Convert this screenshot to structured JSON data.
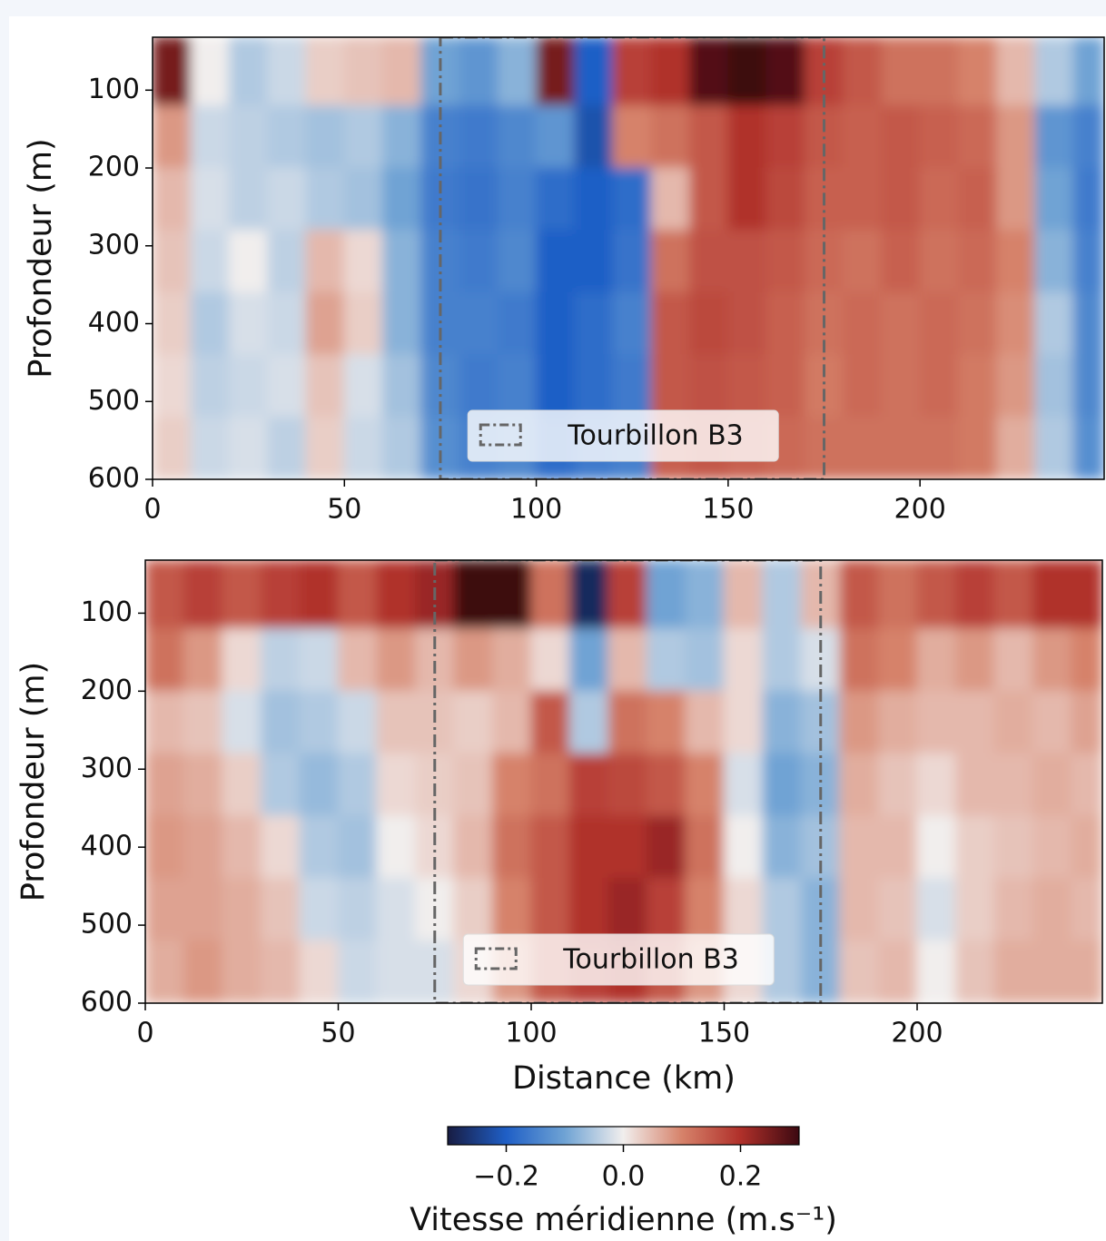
{
  "chart_data": [
    {
      "type": "heatmap",
      "x": [
        5,
        15,
        25,
        35,
        45,
        55,
        65,
        75,
        85,
        95,
        105,
        115,
        125,
        135,
        145,
        155,
        165,
        175,
        185,
        195,
        205,
        215,
        225,
        235,
        245
      ],
      "y": [
        80,
        160,
        240,
        320,
        400,
        480,
        560
      ],
      "values": [
        [
          0.25,
          0.0,
          -0.05,
          -0.03,
          0.03,
          0.04,
          0.05,
          -0.1,
          -0.12,
          -0.08,
          0.25,
          -0.2,
          0.18,
          0.2,
          0.28,
          0.3,
          0.28,
          0.18,
          0.15,
          0.12,
          0.12,
          0.1,
          0.05,
          -0.05,
          -0.1
        ],
        [
          0.08,
          -0.03,
          -0.04,
          -0.05,
          -0.06,
          -0.05,
          -0.08,
          -0.15,
          -0.16,
          -0.14,
          -0.12,
          -0.22,
          0.1,
          0.12,
          0.15,
          0.2,
          0.18,
          0.15,
          0.14,
          0.15,
          0.14,
          0.13,
          0.08,
          -0.12,
          -0.15
        ],
        [
          0.05,
          -0.02,
          -0.04,
          -0.03,
          -0.05,
          -0.06,
          -0.1,
          -0.16,
          -0.17,
          -0.15,
          -0.18,
          -0.2,
          -0.18,
          0.05,
          0.15,
          0.2,
          0.17,
          0.14,
          0.14,
          0.15,
          0.13,
          0.14,
          0.08,
          -0.1,
          -0.16
        ],
        [
          0.04,
          -0.03,
          0.0,
          -0.04,
          0.05,
          0.02,
          -0.08,
          -0.15,
          -0.16,
          -0.14,
          -0.2,
          -0.2,
          -0.17,
          0.12,
          0.16,
          0.16,
          0.15,
          0.13,
          0.12,
          0.14,
          0.12,
          0.13,
          0.1,
          -0.08,
          -0.15
        ],
        [
          0.03,
          -0.05,
          -0.02,
          -0.03,
          0.07,
          0.03,
          -0.08,
          -0.15,
          -0.15,
          -0.16,
          -0.2,
          -0.18,
          -0.15,
          0.15,
          0.17,
          0.16,
          0.14,
          0.12,
          0.13,
          0.12,
          0.13,
          0.12,
          0.09,
          -0.05,
          -0.14
        ],
        [
          0.02,
          -0.04,
          -0.03,
          -0.02,
          0.04,
          -0.02,
          -0.06,
          -0.14,
          -0.16,
          -0.15,
          -0.2,
          -0.18,
          -0.16,
          0.15,
          0.16,
          0.15,
          0.14,
          0.11,
          0.13,
          0.12,
          0.13,
          0.11,
          0.08,
          -0.06,
          -0.14
        ],
        [
          0.03,
          -0.03,
          -0.02,
          -0.04,
          0.03,
          -0.03,
          -0.05,
          -0.13,
          -0.15,
          -0.14,
          -0.18,
          -0.16,
          -0.15,
          0.14,
          0.15,
          0.14,
          0.13,
          0.12,
          0.12,
          0.12,
          0.12,
          0.11,
          0.06,
          -0.05,
          -0.13
        ]
      ],
      "xlim": [
        0,
        248
      ],
      "ylim": [
        32,
        600
      ],
      "invert_y": true,
      "xticks": [
        0,
        50,
        100,
        150,
        200
      ],
      "yticks": [
        100,
        200,
        300,
        400,
        500,
        600
      ],
      "ylabel": "Profondeur (m)",
      "eddy": {
        "label": "Tourbillon B3",
        "x": [
          75,
          175
        ],
        "color": "#666666"
      }
    },
    {
      "type": "heatmap",
      "x": [
        5,
        15,
        25,
        35,
        45,
        55,
        65,
        75,
        85,
        95,
        105,
        115,
        125,
        135,
        145,
        155,
        165,
        175,
        185,
        195,
        205,
        215,
        225,
        235,
        245
      ],
      "y": [
        80,
        160,
        240,
        320,
        400,
        480,
        560
      ],
      "values": [
        [
          0.15,
          0.18,
          0.15,
          0.18,
          0.2,
          0.15,
          0.2,
          0.22,
          0.3,
          0.3,
          0.12,
          -0.28,
          0.18,
          -0.1,
          -0.08,
          0.05,
          -0.05,
          0.05,
          0.15,
          0.12,
          0.15,
          0.18,
          0.15,
          0.2,
          0.2
        ],
        [
          0.12,
          0.08,
          0.02,
          -0.04,
          -0.03,
          0.05,
          0.08,
          0.05,
          0.08,
          0.06,
          0.02,
          -0.1,
          0.05,
          -0.05,
          -0.06,
          0.02,
          -0.05,
          -0.02,
          0.12,
          0.1,
          0.06,
          0.08,
          0.05,
          0.08,
          0.1
        ],
        [
          0.05,
          0.04,
          -0.02,
          -0.06,
          -0.05,
          -0.03,
          0.04,
          0.04,
          0.03,
          0.05,
          0.15,
          -0.05,
          0.12,
          0.1,
          0.05,
          0.02,
          -0.08,
          -0.06,
          0.08,
          0.06,
          0.05,
          0.05,
          0.06,
          0.05,
          0.07
        ],
        [
          0.07,
          0.06,
          0.03,
          -0.05,
          -0.07,
          -0.05,
          0.02,
          0.03,
          0.04,
          0.1,
          0.12,
          0.18,
          0.17,
          0.15,
          0.1,
          -0.02,
          -0.1,
          -0.08,
          0.06,
          0.04,
          0.02,
          0.05,
          0.05,
          0.06,
          0.05
        ],
        [
          0.08,
          0.07,
          0.05,
          0.02,
          -0.05,
          -0.06,
          0.0,
          0.02,
          0.05,
          0.12,
          0.15,
          0.2,
          0.2,
          0.22,
          0.12,
          0.0,
          -0.08,
          -0.06,
          0.05,
          0.05,
          0.0,
          0.03,
          0.04,
          0.05,
          0.06
        ],
        [
          0.07,
          0.07,
          0.06,
          0.04,
          -0.03,
          -0.04,
          -0.02,
          0.0,
          0.03,
          0.1,
          0.15,
          0.2,
          0.22,
          0.18,
          0.1,
          0.02,
          -0.05,
          -0.08,
          0.05,
          0.04,
          -0.02,
          0.03,
          0.05,
          0.06,
          0.05
        ],
        [
          0.06,
          0.08,
          0.06,
          0.05,
          0.02,
          -0.03,
          -0.02,
          -0.02,
          0.02,
          0.08,
          0.15,
          0.18,
          0.2,
          0.15,
          0.08,
          0.02,
          -0.05,
          -0.08,
          0.04,
          0.05,
          0.0,
          0.04,
          0.06,
          0.06,
          0.06
        ]
      ],
      "xlim": [
        0,
        248
      ],
      "ylim": [
        32,
        600
      ],
      "invert_y": true,
      "xticks": [
        0,
        50,
        100,
        150,
        200
      ],
      "yticks": [
        100,
        200,
        300,
        400,
        500,
        600
      ],
      "xlabel": "Distance (km)",
      "ylabel": "Profondeur (m)",
      "eddy": {
        "label": "Tourbillon B3",
        "x": [
          75,
          175
        ],
        "color": "#666666"
      }
    }
  ],
  "colorbar": {
    "label": "Vitesse méridienne (m.s⁻¹)",
    "lim": [
      -0.3,
      0.3
    ],
    "ticks": [
      {
        "value": -0.2,
        "label": "−0.2"
      },
      {
        "value": 0,
        "label": "0.0"
      },
      {
        "value": 0.2,
        "label": "0.2"
      }
    ],
    "colormap": [
      "#181c43",
      "#1f5fc6",
      "#6fa3d4",
      "#f1eeed",
      "#d6826a",
      "#b0302a",
      "#3c0911"
    ]
  }
}
